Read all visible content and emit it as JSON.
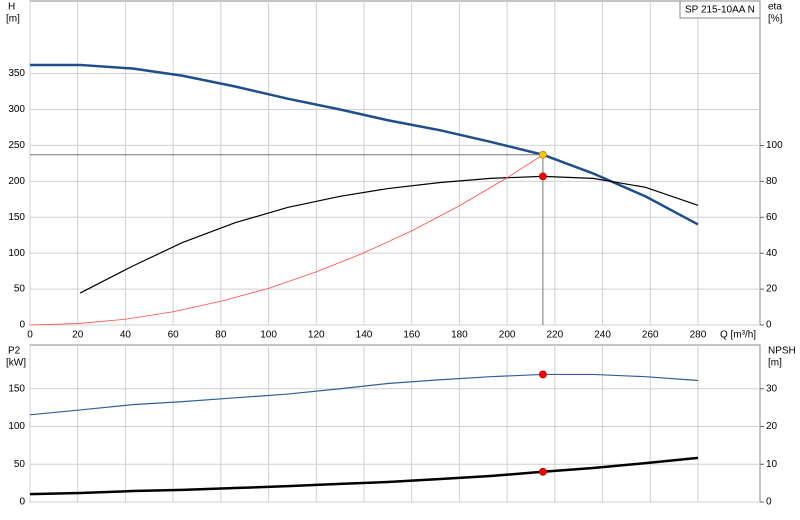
{
  "chart_data": [
    {
      "type": "line",
      "title": "SP 215-10AA N",
      "ylabel": "H",
      "yunit": "[m]",
      "y2label": "eta",
      "y2unit": "[%]",
      "xlabel": "Q [m³/h]",
      "xlim": [
        0,
        306
      ],
      "ylim": [
        0,
        451
      ],
      "y2lim": [
        0,
        180.5
      ],
      "xticks": [
        0,
        20,
        40,
        60,
        80,
        100,
        120,
        140,
        160,
        180,
        200,
        220,
        240,
        260,
        280
      ],
      "yticks": [
        0,
        50,
        100,
        150,
        200,
        250,
        300,
        350
      ],
      "y2ticks": [
        0,
        20,
        40,
        60,
        80,
        100
      ],
      "grid": true,
      "series": [
        {
          "color": "#1f4e8c",
          "line_width": 2.5,
          "x": [
            0,
            21,
            43,
            64,
            86,
            108,
            130,
            150,
            172,
            193,
            215,
            236,
            258,
            280
          ],
          "values": [
            362,
            362,
            357,
            347,
            332,
            315,
            300,
            285,
            271,
            255,
            237,
            211,
            179,
            140
          ]
        },
        {
          "color": "#000000",
          "line_width": 1.2,
          "axis": "y2",
          "x": [
            21,
            43,
            64,
            86,
            108,
            130,
            150,
            172,
            193,
            215,
            236,
            258,
            280
          ],
          "values": [
            17.8,
            32.8,
            46,
            57,
            65.5,
            71.7,
            76,
            79.4,
            81.7,
            82.8,
            81.7,
            76.7,
            66.7
          ]
        },
        {
          "color": "#ff4a4a",
          "line_width": 0.8,
          "x": [
            0,
            20,
            40,
            60,
            80,
            100,
            120,
            140,
            160,
            180,
            200,
            215
          ],
          "values": [
            0,
            2,
            8,
            18.5,
            33,
            51,
            74,
            100.5,
            131,
            166,
            205,
            237
          ]
        },
        {
          "color": "#f5c518",
          "marker": true,
          "crosshair": true,
          "x": [
            215
          ],
          "values": [
            237
          ]
        },
        {
          "color": "#ff0000",
          "marker": true,
          "axis": "y2",
          "x": [
            215
          ],
          "values": [
            82.8
          ]
        }
      ]
    },
    {
      "type": "line",
      "ylabel": "P2",
      "yunit": "[kW]",
      "y2label": "NPSH",
      "y2unit": "[m]",
      "xlim": [
        0,
        306
      ],
      "ylim": [
        0,
        208
      ],
      "y2lim": [
        0,
        41.6
      ],
      "xticks": [
        0,
        20,
        40,
        60,
        80,
        100,
        120,
        140,
        160,
        180,
        200,
        220,
        240,
        260,
        280
      ],
      "yticks": [
        0,
        50,
        100,
        150
      ],
      "y2ticks": [
        0,
        10,
        20,
        30
      ],
      "grid": true,
      "series": [
        {
          "color": "#2f5f9f",
          "line_width": 1.2,
          "x": [
            0,
            21,
            43,
            64,
            86,
            108,
            130,
            150,
            172,
            193,
            215,
            236,
            258,
            280
          ],
          "values": [
            115.5,
            122,
            129,
            133,
            138,
            143,
            150,
            157,
            162,
            166,
            169,
            169,
            166,
            161
          ]
        },
        {
          "color": "#000000",
          "line_width": 2.5,
          "axis": "y2",
          "x": [
            0,
            21,
            43,
            64,
            86,
            108,
            130,
            150,
            172,
            193,
            215,
            236,
            258,
            280
          ],
          "values": [
            2.1,
            2.4,
            2.9,
            3.2,
            3.7,
            4.2,
            4.8,
            5.3,
            6.1,
            6.9,
            8,
            9,
            10.3,
            11.7
          ]
        },
        {
          "color": "#ff0000",
          "marker": true,
          "x": [
            215
          ],
          "values": [
            169
          ]
        },
        {
          "color": "#ff0000",
          "marker": true,
          "axis": "y2",
          "x": [
            215
          ],
          "values": [
            8
          ]
        }
      ]
    }
  ]
}
